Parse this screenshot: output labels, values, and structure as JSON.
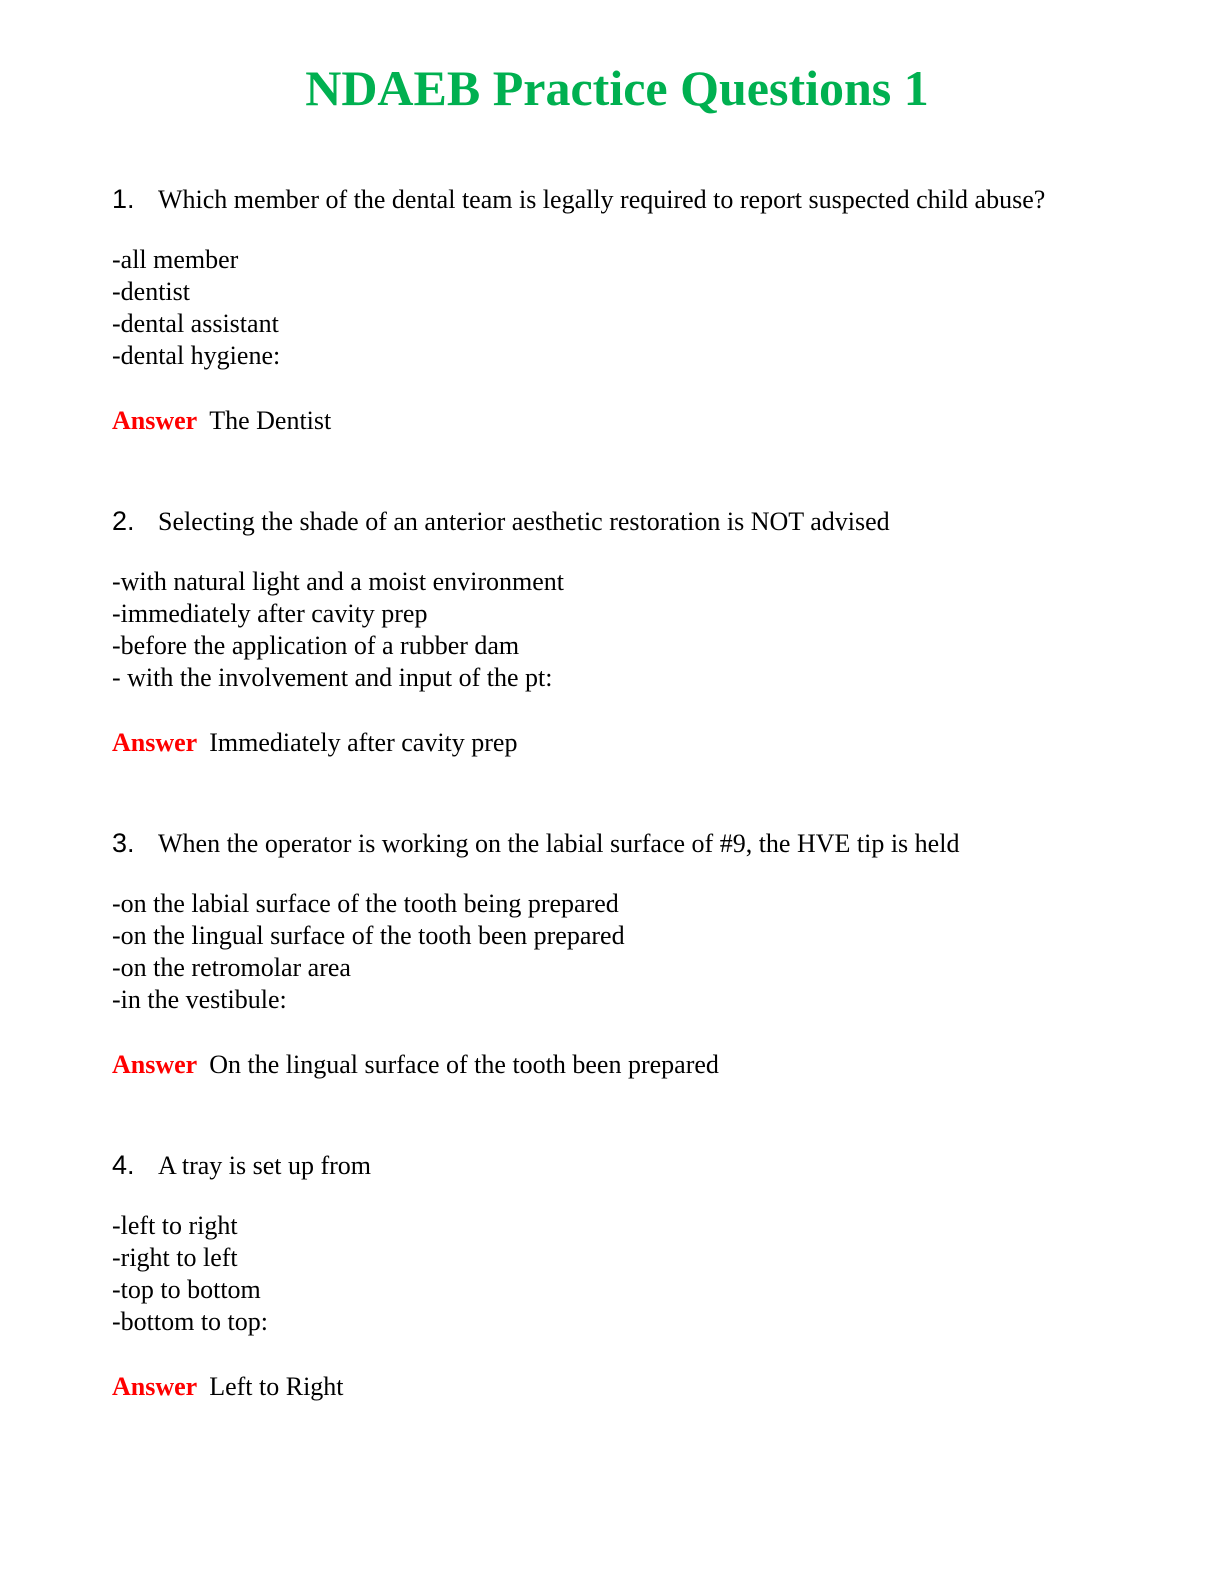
{
  "title": "NDAEB Practice Questions 1",
  "colors": {
    "title": "#00b050",
    "answer_label": "#ff0000"
  },
  "answer_label": "Answer",
  "questions": [
    {
      "number": "1.",
      "text": "Which member of the dental team is legally required to report suspected child abuse?",
      "options": [
        "-all member",
        "-dentist",
        "-dental assistant",
        "-dental hygiene:"
      ],
      "answer": "The Dentist"
    },
    {
      "number": "2.",
      "text": "Selecting the shade of an anterior aesthetic restoration is NOT advised",
      "options": [
        "-with natural light and a moist environment",
        "-immediately after cavity prep",
        "-before the application of a rubber dam",
        "- with the involvement and input of the pt:"
      ],
      "answer": "Immediately after cavity prep"
    },
    {
      "number": "3.",
      "text": "When the operator is working on the labial surface of #9, the HVE tip is held",
      "options": [
        "-on the labial surface of the tooth being prepared",
        "-on the lingual surface of the tooth been prepared",
        "-on the retromolar area",
        "-in the vestibule:"
      ],
      "answer": "On the lingual surface of the tooth been prepared"
    },
    {
      "number": "4.",
      "text": "A tray is set up from",
      "options": [
        "-left to right",
        "-right to left",
        "-top to bottom",
        "-bottom to top:"
      ],
      "answer": "Left to Right"
    }
  ]
}
